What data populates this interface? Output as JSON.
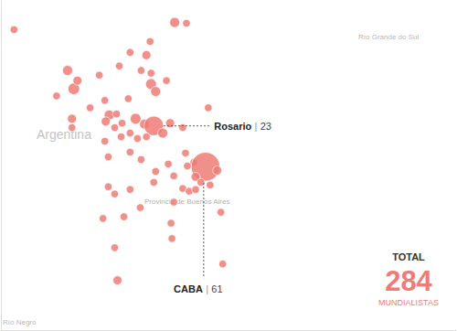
{
  "chart_data": {
    "type": "scatter",
    "color": "#ef7b77",
    "xlim": [
      -67.3,
      -47.5
    ],
    "ylim": [
      -41.2,
      -27.9
    ],
    "grid": false,
    "tick_labels": false,
    "map_labels": [
      "Argentina",
      "Provincia de Buenos Aires",
      "Río Grande do Sul",
      "Río Negro"
    ],
    "label_separator": "|",
    "total": {
      "title": "TOTAL",
      "value": 284,
      "caption": "MUNDIALISTAS"
    },
    "points": [
      {
        "x": -66.73,
        "y": -29.06,
        "size": 1
      },
      {
        "x": -59.74,
        "y": -28.77,
        "size": 3
      },
      {
        "x": -59.23,
        "y": -28.8,
        "size": 1
      },
      {
        "x": -60.81,
        "y": -29.54,
        "size": 1
      },
      {
        "x": -64.4,
        "y": -30.71,
        "size": 3
      },
      {
        "x": -64.13,
        "y": -31.45,
        "size": 5
      },
      {
        "x": -63.97,
        "y": -31.12,
        "size": 2
      },
      {
        "x": -63.02,
        "y": -30.9,
        "size": 1
      },
      {
        "x": -62.15,
        "y": -30.53,
        "size": 1
      },
      {
        "x": -61.68,
        "y": -29.98,
        "size": 1
      },
      {
        "x": -60.97,
        "y": -30.09,
        "size": 2
      },
      {
        "x": -60.77,
        "y": -31.26,
        "size": 4
      },
      {
        "x": -60.57,
        "y": -31.56,
        "size": 3
      },
      {
        "x": -61.2,
        "y": -30.71,
        "size": 1
      },
      {
        "x": -60.77,
        "y": -30.82,
        "size": 1
      },
      {
        "x": -60.1,
        "y": -31.12,
        "size": 1
      },
      {
        "x": -64.88,
        "y": -31.74,
        "size": 1
      },
      {
        "x": -64.21,
        "y": -32.66,
        "size": 2
      },
      {
        "x": -64.21,
        "y": -33.02,
        "size": 1
      },
      {
        "x": -63.42,
        "y": -32.22,
        "size": 1
      },
      {
        "x": -62.78,
        "y": -31.92,
        "size": 1
      },
      {
        "x": -62.59,
        "y": -32.51,
        "size": 3
      },
      {
        "x": -62.74,
        "y": -32.77,
        "size": 2
      },
      {
        "x": -62.27,
        "y": -32.47,
        "size": 1
      },
      {
        "x": -62.03,
        "y": -32.84,
        "size": 1
      },
      {
        "x": -61.76,
        "y": -31.85,
        "size": 1
      },
      {
        "x": -61.44,
        "y": -32.66,
        "size": 4
      },
      {
        "x": -61.05,
        "y": -32.88,
        "size": 3
      },
      {
        "x": -60.65,
        "y": -32.95,
        "size": 23,
        "label": "Rosario"
      },
      {
        "x": -60.26,
        "y": -33.24,
        "size": 3
      },
      {
        "x": -59.94,
        "y": -32.84,
        "size": 2
      },
      {
        "x": -60.97,
        "y": -33.39,
        "size": 1
      },
      {
        "x": -61.68,
        "y": -33.24,
        "size": 1
      },
      {
        "x": -61.36,
        "y": -33.46,
        "size": 1
      },
      {
        "x": -62.07,
        "y": -33.39,
        "size": 1
      },
      {
        "x": -62.35,
        "y": -33.02,
        "size": 1
      },
      {
        "x": -62.78,
        "y": -33.57,
        "size": 1
      },
      {
        "x": -59.39,
        "y": -33.02,
        "size": 1
      },
      {
        "x": -58.28,
        "y": -32.22,
        "size": 1
      },
      {
        "x": -59.27,
        "y": -34.05,
        "size": 1
      },
      {
        "x": -58.91,
        "y": -34.42,
        "size": 1
      },
      {
        "x": -58.4,
        "y": -34.6,
        "size": 61,
        "label": "CABA"
      },
      {
        "x": -57.89,
        "y": -34.75,
        "size": 2
      },
      {
        "x": -58.83,
        "y": -35.01,
        "size": 2
      },
      {
        "x": -58.6,
        "y": -35.23,
        "size": 1
      },
      {
        "x": -58.2,
        "y": -35.34,
        "size": 1
      },
      {
        "x": -59.19,
        "y": -34.57,
        "size": 1
      },
      {
        "x": -62.63,
        "y": -34.2,
        "size": 1
      },
      {
        "x": -61.68,
        "y": -34.01,
        "size": 1
      },
      {
        "x": -61.2,
        "y": -34.31,
        "size": 1
      },
      {
        "x": -60.57,
        "y": -34.79,
        "size": 1
      },
      {
        "x": -60.02,
        "y": -34.49,
        "size": 1
      },
      {
        "x": -59.78,
        "y": -34.97,
        "size": 1
      },
      {
        "x": -59.39,
        "y": -35.48,
        "size": 1
      },
      {
        "x": -59.11,
        "y": -35.59,
        "size": 1
      },
      {
        "x": -58.83,
        "y": -35.52,
        "size": 1
      },
      {
        "x": -62.63,
        "y": -35.41,
        "size": 1
      },
      {
        "x": -62.35,
        "y": -35.7,
        "size": 1
      },
      {
        "x": -61.68,
        "y": -35.52,
        "size": 1
      },
      {
        "x": -60.65,
        "y": -35.23,
        "size": 1
      },
      {
        "x": -61.24,
        "y": -36.25,
        "size": 1
      },
      {
        "x": -59.9,
        "y": -36.88,
        "size": 1
      },
      {
        "x": -59.86,
        "y": -37.5,
        "size": 1
      },
      {
        "x": -57.73,
        "y": -36.44,
        "size": 1
      },
      {
        "x": -57.65,
        "y": -38.53,
        "size": 1
      },
      {
        "x": -62.35,
        "y": -37.87,
        "size": 1
      },
      {
        "x": -61.95,
        "y": -36.62,
        "size": 1
      },
      {
        "x": -62.86,
        "y": -36.69,
        "size": 1
      },
      {
        "x": -62.23,
        "y": -39.19,
        "size": 2
      },
      {
        "x": -59.78,
        "y": -36.03,
        "size": 1
      }
    ]
  }
}
